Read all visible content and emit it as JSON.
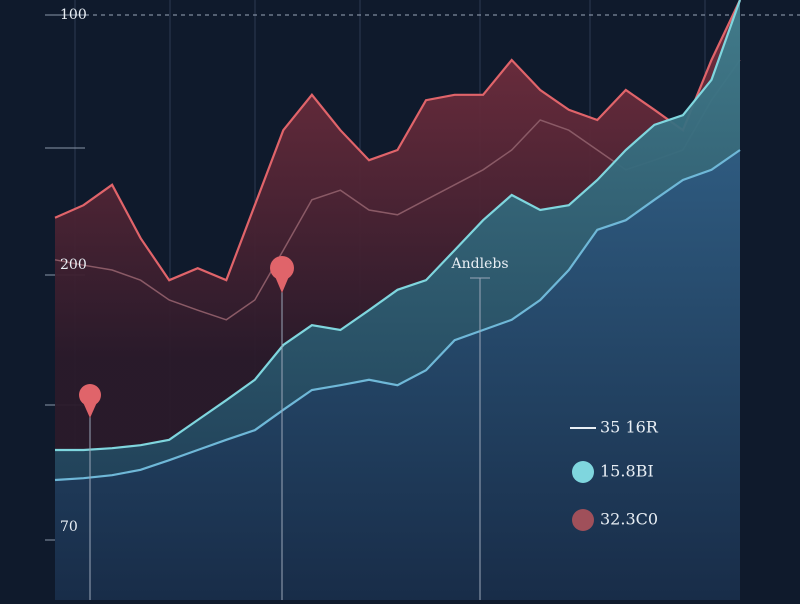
{
  "chart_data": {
    "type": "area",
    "annotation": "Andlebs",
    "y_labels": [
      "100",
      "200",
      "70"
    ],
    "x": [
      0,
      1,
      2,
      3,
      4,
      5,
      6,
      7,
      8,
      9,
      10,
      11,
      12,
      13,
      14,
      15,
      16,
      17,
      18,
      19,
      20,
      21,
      22,
      23,
      24
    ],
    "xlim": [
      0,
      24
    ],
    "ylim": [
      0,
      100
    ],
    "series": [
      {
        "name": "32.3C0",
        "color": "#e0646a",
        "style": "area",
        "values": [
          63.7,
          65.8,
          69.2,
          60.3,
          53.3,
          55.3,
          53.3,
          65.8,
          78.3,
          84.2,
          78.3,
          73.3,
          75,
          83.3,
          84.2,
          84.2,
          90,
          85,
          81.7,
          80,
          85,
          81.7,
          78.3,
          90,
          100
        ]
      },
      {
        "name": "35 16R",
        "color": "#8a5a66",
        "style": "line",
        "values": [
          56.7,
          55.8,
          55,
          53.3,
          50,
          48.3,
          46.7,
          50,
          58.3,
          66.7,
          68.3,
          65,
          64.2,
          66.7,
          69.2,
          71.7,
          75,
          80,
          78.3,
          75,
          71.7,
          73.3,
          75,
          83.3,
          90
        ]
      },
      {
        "name": "15.8BI",
        "color": "#7fd6de",
        "style": "area",
        "values": [
          25,
          25,
          25.3,
          25.8,
          26.7,
          30,
          33.3,
          36.7,
          42.5,
          45.8,
          45,
          48.3,
          51.7,
          53.3,
          58.3,
          63.3,
          67.5,
          65,
          65.8,
          70,
          75,
          79.2,
          80.8,
          86.7,
          100
        ]
      },
      {
        "name": "",
        "color": "#6fb8d8",
        "style": "area",
        "values": [
          20,
          20.3,
          20.8,
          21.7,
          23.3,
          25,
          26.7,
          28.3,
          31.7,
          35,
          35.8,
          36.7,
          35.8,
          38.3,
          43.3,
          45,
          46.7,
          50,
          55,
          61.7,
          63.3,
          66.7,
          70,
          71.7,
          75
        ]
      }
    ]
  }
}
